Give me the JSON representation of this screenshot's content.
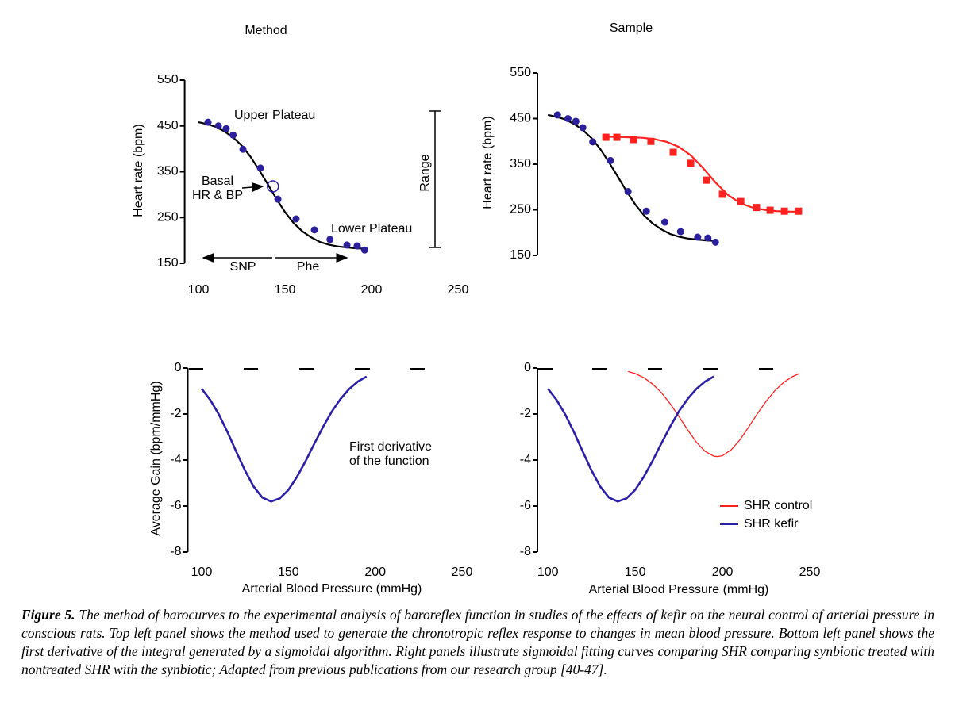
{
  "chart_data": [
    {
      "type": "scatter",
      "title": "Method",
      "y_label": "Heart rate (bpm)",
      "xlim": [
        92,
        250
      ],
      "ylim": [
        150,
        550
      ],
      "xticks": [
        100,
        150,
        200,
        250
      ],
      "yticks": [
        150,
        250,
        350,
        450,
        550
      ],
      "series": [
        {
          "style": "markers",
          "marker": "circle",
          "color": "#2b1f9e",
          "x": [
            105.5,
            111.5,
            116,
            120,
            125.7,
            135.8,
            145.9,
            156.4,
            167,
            176,
            185.8,
            191.7,
            196
          ],
          "values": [
            458,
            450,
            444,
            430,
            399,
            358,
            290,
            247,
            223,
            202,
            190,
            188,
            179
          ]
        },
        {
          "style": "line",
          "color": "#000000",
          "x": [
            100,
            105,
            110,
            115,
            120,
            125,
            130,
            135,
            140,
            145,
            150,
            155,
            160,
            165,
            170,
            175,
            180,
            185,
            190,
            195
          ],
          "values": [
            458,
            454,
            448,
            438,
            425,
            407,
            383,
            354,
            323,
            291,
            262,
            238,
            220,
            207,
            197,
            191,
            187,
            185,
            183,
            182
          ]
        }
      ],
      "basal": {
        "x": 143,
        "y": 318
      },
      "annotations": [
        "Upper Plateau",
        "Basal",
        "HR & BP",
        "Lower Plateau",
        "SNP",
        "Phe",
        "Range"
      ]
    },
    {
      "type": "scatter",
      "title": "Sample",
      "y_label": "Heart rate (bpm)",
      "xlim": [
        94,
        250
      ],
      "ylim": [
        150,
        550
      ],
      "yticks": [
        150,
        250,
        350,
        450,
        550
      ],
      "series": [
        {
          "style": "markers",
          "marker": "circle",
          "color": "#2b1f9e",
          "x": [
            105.5,
            111.5,
            116,
            120,
            125.7,
            135.8,
            145.9,
            156.4,
            167,
            176,
            185.8,
            191.7,
            196
          ],
          "values": [
            458,
            450,
            444,
            430,
            399,
            358,
            290,
            247,
            223,
            202,
            190,
            188,
            179
          ]
        },
        {
          "style": "line",
          "color": "#000000",
          "x": [
            100,
            105,
            110,
            115,
            120,
            125,
            130,
            135,
            140,
            145,
            150,
            155,
            160,
            165,
            170,
            175,
            180,
            185,
            190,
            195
          ],
          "values": [
            458,
            454,
            448,
            438,
            425,
            407,
            383,
            354,
            323,
            291,
            262,
            238,
            220,
            207,
            197,
            191,
            187,
            185,
            183,
            182
          ]
        },
        {
          "style": "markers",
          "marker": "square",
          "color": "#ff2020",
          "x": [
            133.2,
            139.5,
            149,
            159,
            171.8,
            181.8,
            190.9,
            200,
            210.5,
            219.5,
            227.3,
            235.5,
            243.6
          ],
          "values": [
            409,
            409,
            404,
            400,
            376,
            352,
            315,
            284,
            268,
            255,
            249,
            247,
            247
          ]
        },
        {
          "style": "line",
          "color": "#ff2020",
          "x": [
            133,
            140,
            147,
            154,
            161,
            168,
            175,
            182,
            189,
            196,
            203,
            210,
            217,
            224,
            231,
            238,
            245
          ],
          "values": [
            410,
            410,
            409,
            408,
            405,
            399,
            388,
            369,
            341,
            310,
            283,
            265,
            255,
            250,
            247,
            246,
            246
          ]
        }
      ]
    },
    {
      "type": "line",
      "y_label": "Average Gain (bpm/mmHg)",
      "x_label": "Arterial Blood Pressure (mmHg)",
      "xlim": [
        92,
        250
      ],
      "ylim": [
        -8,
        0
      ],
      "xticks": [
        100,
        150,
        200,
        250
      ],
      "yticks": [
        0,
        -2,
        -4,
        -6,
        -8
      ],
      "series": [
        {
          "style": "line",
          "color": "#2b1fa8",
          "x": [
            100,
            105,
            110,
            115,
            120,
            125,
            130,
            135,
            140,
            145,
            150,
            155,
            160,
            165,
            170,
            175,
            180,
            185,
            190,
            195
          ],
          "values": [
            -0.9,
            -1.39,
            -2.03,
            -2.8,
            -3.64,
            -4.46,
            -5.16,
            -5.63,
            -5.8,
            -5.67,
            -5.3,
            -4.72,
            -4.03,
            -3.28,
            -2.55,
            -1.89,
            -1.35,
            -0.91,
            -0.59,
            -0.37
          ]
        }
      ],
      "annotations": [
        "First derivative",
        "of the function"
      ]
    },
    {
      "type": "line",
      "x_label": "Arterial Blood Pressure (mmHg)",
      "xlim": [
        94,
        250
      ],
      "ylim": [
        -8,
        0
      ],
      "xticks": [
        100,
        150,
        200,
        250
      ],
      "yticks": [
        0,
        -2,
        -4,
        -6,
        -8
      ],
      "legend": "lower right",
      "series": [
        {
          "name": "SHR control",
          "style": "line",
          "color": "#ff2020",
          "x": [
            146,
            150,
            155,
            160,
            165,
            170,
            175,
            180,
            185,
            190,
            195,
            197,
            200,
            205,
            210,
            215,
            220,
            225,
            230,
            235,
            240,
            244
          ],
          "values": [
            -0.15,
            -0.24,
            -0.42,
            -0.7,
            -1.07,
            -1.55,
            -2.1,
            -2.68,
            -3.22,
            -3.62,
            -3.83,
            -3.85,
            -3.81,
            -3.55,
            -3.12,
            -2.57,
            -1.99,
            -1.45,
            -0.99,
            -0.63,
            -0.38,
            -0.24
          ]
        },
        {
          "name": "SHR kefir",
          "style": "line",
          "color": "#2b1fa8",
          "x": [
            100,
            105,
            110,
            115,
            120,
            125,
            130,
            135,
            140,
            145,
            150,
            155,
            160,
            165,
            170,
            175,
            180,
            185,
            190,
            195
          ],
          "values": [
            -0.9,
            -1.39,
            -2.03,
            -2.8,
            -3.64,
            -4.46,
            -5.16,
            -5.63,
            -5.8,
            -5.67,
            -5.3,
            -4.72,
            -4.03,
            -3.28,
            -2.55,
            -1.89,
            -1.35,
            -0.91,
            -0.59,
            -0.37
          ]
        }
      ]
    }
  ],
  "caption": {
    "label": "Figure 5.",
    "text": "The method of barocurves to the experimental analysis of baroreflex function in studies of the effects of kefir on the neural control of arterial pressure in conscious rats. Top left panel shows the method used to generate the chronotropic reflex response to changes in mean blood pressure. Bottom left panel shows the first derivative of the integral generated by a sigmoidal algorithm. Right panels illustrate sigmoidal fitting curves comparing SHR comparing synbiotic treated with nontreated SHR with the synbiotic; Adapted from previous publications from our research group [40-47]."
  }
}
